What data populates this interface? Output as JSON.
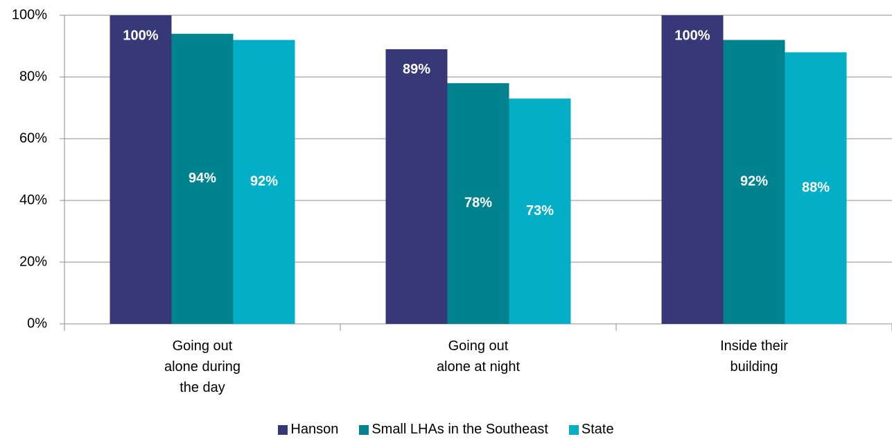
{
  "chart_data": {
    "type": "bar",
    "categories": [
      "Going out\nalone during\nthe day",
      "Going out\nalone at night",
      "Inside their\nbuilding"
    ],
    "series": [
      {
        "name": "Hanson",
        "color": "#363877",
        "values": [
          100,
          89,
          100
        ],
        "value_labels": [
          "100%",
          "89%",
          "100%"
        ]
      },
      {
        "name": "Small LHAs in the Southeast",
        "color": "#00838f",
        "values": [
          94,
          78,
          92
        ],
        "value_labels": [
          "94%",
          "78%",
          "92%"
        ]
      },
      {
        "name": "State",
        "color": "#03afc6",
        "values": [
          92,
          73,
          88
        ],
        "value_labels": [
          "92%",
          "73%",
          "88%"
        ]
      }
    ],
    "ylim": [
      0,
      100
    ],
    "yticks": [
      {
        "value": 0,
        "label": "0%"
      },
      {
        "value": 20,
        "label": "20%"
      },
      {
        "value": 40,
        "label": "40%"
      },
      {
        "value": 60,
        "label": "60%"
      },
      {
        "value": 80,
        "label": "80%"
      },
      {
        "value": 100,
        "label": "100%"
      }
    ],
    "grid": true,
    "legend": "bottom"
  }
}
